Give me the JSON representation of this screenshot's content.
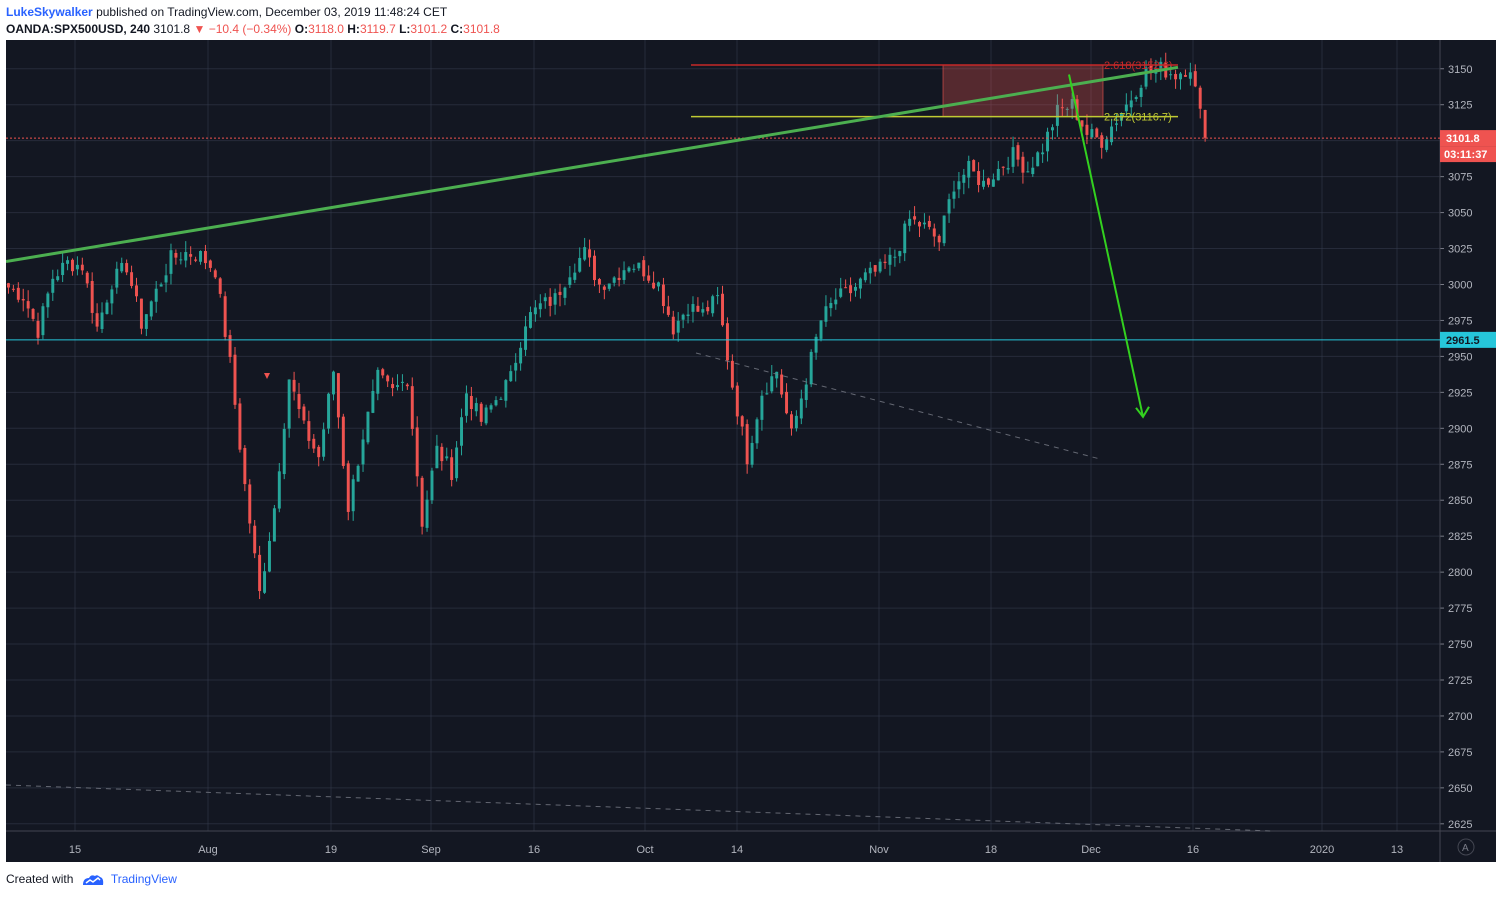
{
  "header": {
    "author": "LukeSkywalker",
    "published_text": "published on TradingView.com, December 03, 2019 11:48:24 CET",
    "symbol": "OANDA:SPX500USD, 240",
    "last": "3101.8",
    "change": "−10.4 (−0.34%)",
    "o_label": "O:",
    "o_val": "3118.0",
    "h_label": "H:",
    "h_val": "3119.7",
    "l_label": "L:",
    "l_val": "3101.2",
    "c_label": "C:",
    "c_val": "3101.8"
  },
  "footer": {
    "created_with": "Created with",
    "brand": "TradingView"
  },
  "chart_data": {
    "type": "candlestick",
    "symbol": "OANDA:SPX500USD",
    "timeframe": "240",
    "ylim": [
      2620,
      3170
    ],
    "y_ticks": [
      3150,
      3125,
      3100,
      3075,
      3050,
      3025,
      3000,
      2975,
      2950,
      2925,
      2900,
      2875,
      2850,
      2825,
      2800,
      2775,
      2750,
      2725,
      2700,
      2675,
      2650,
      2625
    ],
    "x_ticks": [
      "15",
      "Aug",
      "19",
      "Sep",
      "16",
      "Oct",
      "14",
      "Nov",
      "18",
      "Dec",
      "16",
      "2020",
      "13"
    ],
    "price_path": [
      [
        0,
        2998
      ],
      [
        3,
        2992
      ],
      [
        6,
        2968
      ],
      [
        9,
        3005
      ],
      [
        12,
        3015
      ],
      [
        15,
        3013
      ],
      [
        18,
        2970
      ],
      [
        21,
        3002
      ],
      [
        24,
        3013
      ],
      [
        27,
        2973
      ],
      [
        30,
        2995
      ],
      [
        33,
        3018
      ],
      [
        36,
        3022
      ],
      [
        39,
        3020
      ],
      [
        42,
        3010
      ],
      [
        45,
        2945
      ],
      [
        48,
        2860
      ],
      [
        51,
        2785
      ],
      [
        54,
        2845
      ],
      [
        57,
        2935
      ],
      [
        60,
        2900
      ],
      [
        63,
        2880
      ],
      [
        66,
        2940
      ],
      [
        69,
        2845
      ],
      [
        72,
        2895
      ],
      [
        75,
        2935
      ],
      [
        78,
        2925
      ],
      [
        81,
        2935
      ],
      [
        84,
        2835
      ],
      [
        87,
        2885
      ],
      [
        90,
        2870
      ],
      [
        93,
        2925
      ],
      [
        96,
        2905
      ],
      [
        99,
        2920
      ],
      [
        102,
        2935
      ],
      [
        105,
        2975
      ],
      [
        108,
        2985
      ],
      [
        111,
        2990
      ],
      [
        114,
        3010
      ],
      [
        117,
        3022
      ],
      [
        120,
        3000
      ],
      [
        123,
        3005
      ],
      [
        126,
        3015
      ],
      [
        129,
        3010
      ],
      [
        132,
        3000
      ],
      [
        135,
        2970
      ],
      [
        138,
        2985
      ],
      [
        141,
        2980
      ],
      [
        144,
        2990
      ],
      [
        147,
        2930
      ],
      [
        150,
        2880
      ],
      [
        153,
        2925
      ],
      [
        156,
        2940
      ],
      [
        159,
        2895
      ],
      [
        162,
        2935
      ],
      [
        165,
        2975
      ],
      [
        168,
        2990
      ],
      [
        171,
        2995
      ],
      [
        174,
        3005
      ],
      [
        177,
        3010
      ],
      [
        180,
        3020
      ],
      [
        183,
        3045
      ],
      [
        186,
        3040
      ],
      [
        189,
        3030
      ],
      [
        192,
        3070
      ],
      [
        195,
        3080
      ],
      [
        198,
        3070
      ],
      [
        201,
        3080
      ],
      [
        204,
        3090
      ],
      [
        207,
        3080
      ],
      [
        210,
        3095
      ],
      [
        213,
        3120
      ],
      [
        216,
        3125
      ],
      [
        219,
        3105
      ],
      [
        222,
        3100
      ],
      [
        225,
        3115
      ],
      [
        228,
        3130
      ],
      [
        231,
        3148
      ],
      [
        234,
        3150
      ],
      [
        237,
        3146
      ],
      [
        240,
        3152
      ],
      [
        242,
        3118
      ],
      [
        243,
        3102
      ]
    ],
    "last_price": 3101.8,
    "countdown": "03:11:37",
    "horizontal_levels": [
      {
        "label": "2961.5",
        "price": 2961.5,
        "color": "#26c6da"
      },
      {
        "label": "3101.8",
        "price": 3101.8,
        "color": "#ef5350"
      }
    ],
    "fib_levels": [
      {
        "label": "2.618(3152.6)",
        "price": 3152.6,
        "color": "#c62828"
      },
      {
        "label": "2.272(3116.7)",
        "price": 3116.7,
        "color": "#c0ca33"
      }
    ],
    "trendline": {
      "from": [
        0,
        3016
      ],
      "to": [
        257,
        3151
      ],
      "color": "#4caf50"
    },
    "projection_arrow": {
      "from": [
        234,
        3146
      ],
      "to": [
        252,
        2908
      ],
      "color": "#33d11f"
    },
    "dashed_lines": [
      {
        "from": [
          150,
          2958
        ],
        "to": [
          234,
          2880
        ]
      },
      {
        "from": [
          0,
          2655
        ],
        "to": [
          280,
          2625
        ]
      }
    ],
    "zone": {
      "from_price": 3116.7,
      "to_price": 3152.6,
      "color": "#ef5350"
    },
    "colors": {
      "bg": "#131722",
      "grid": "#363c4e",
      "up": "#26a69a",
      "down": "#ef5350",
      "text": "#b2b5be"
    }
  }
}
